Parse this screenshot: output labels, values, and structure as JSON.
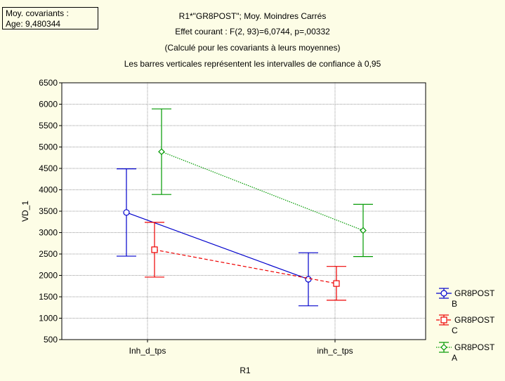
{
  "covariates_box": {
    "line1": "Moy. covariants :",
    "line2": "Age: 9,480344"
  },
  "header": {
    "title": "R1*\"GR8POST\"; Moy. Moindres Carrés",
    "subtitle": "Effet courant : F(2, 93)=6,0744, p=,00332",
    "note1": "(Calculé pour les covariants à leurs moyennes)",
    "note2": "Les barres verticales représentent les intervalles de confiance à 0,95"
  },
  "chart_data": {
    "type": "line",
    "xlabel": "R1",
    "ylabel": "VD_1",
    "ylim": [
      500,
      6500
    ],
    "yticks": [
      500,
      1000,
      1500,
      2000,
      2500,
      3000,
      3500,
      4000,
      4500,
      5000,
      5500,
      6000,
      6500
    ],
    "categories": [
      "Inh_d_tps",
      "inh_c_tps"
    ],
    "grid": true,
    "legend_position": "right",
    "series": [
      {
        "name": "GR8POST B",
        "legend_lines": [
          "GR8POST",
          "B"
        ],
        "color": "#0000cc",
        "marker": "circle",
        "dash": "solid",
        "values": [
          3470,
          1910
        ],
        "ci_low": [
          2450,
          1290
        ],
        "ci_high": [
          4490,
          2530
        ]
      },
      {
        "name": "GR8POST C",
        "legend_lines": [
          "GR8POST",
          "C"
        ],
        "color": "#ee0000",
        "marker": "square",
        "dash": "dashed",
        "values": [
          2600,
          1810
        ],
        "ci_low": [
          1960,
          1420
        ],
        "ci_high": [
          3240,
          2210
        ]
      },
      {
        "name": "GR8POST A",
        "legend_lines": [
          "GR8POST",
          "A"
        ],
        "color": "#009900",
        "marker": "diamond",
        "dash": "dotted",
        "values": [
          4890,
          3050
        ],
        "ci_low": [
          3890,
          2440
        ],
        "ci_high": [
          5890,
          3660
        ]
      }
    ]
  }
}
